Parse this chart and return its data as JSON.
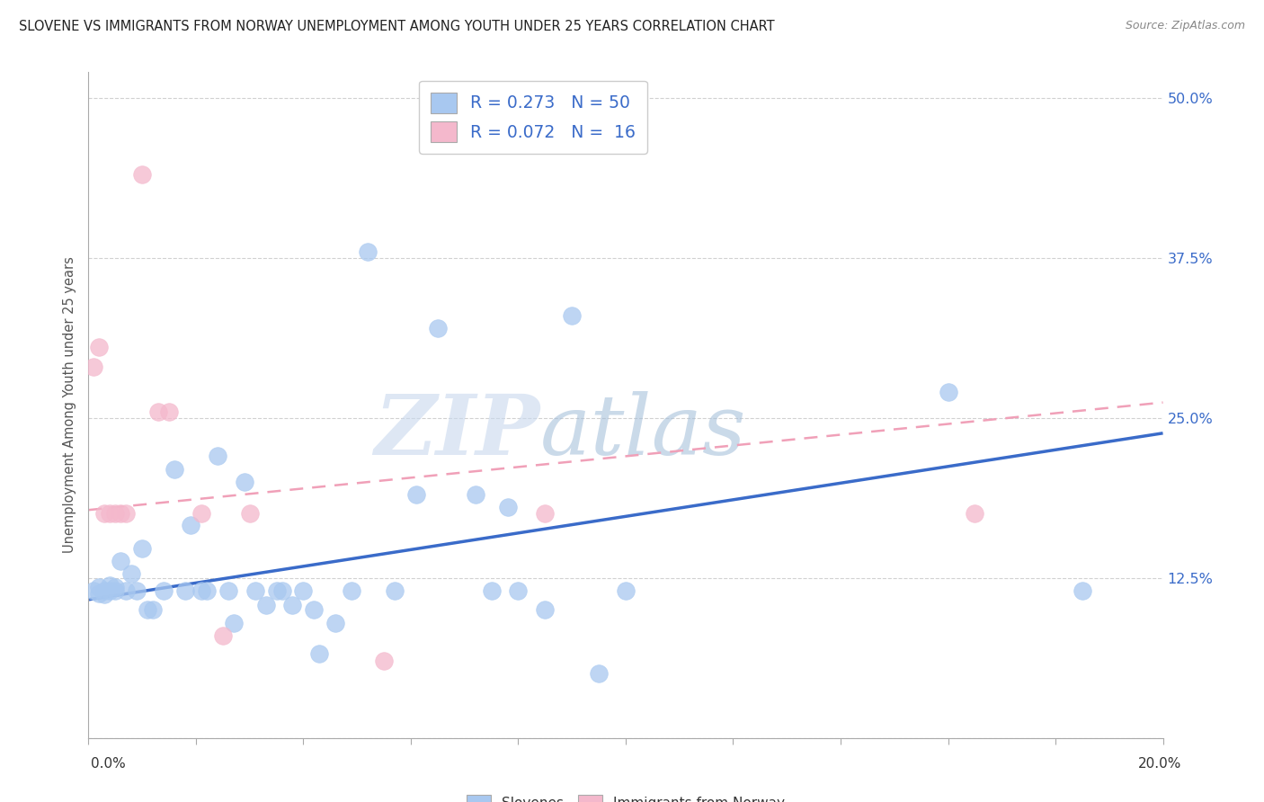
{
  "title": "SLOVENE VS IMMIGRANTS FROM NORWAY UNEMPLOYMENT AMONG YOUTH UNDER 25 YEARS CORRELATION CHART",
  "source": "Source: ZipAtlas.com",
  "ylabel": "Unemployment Among Youth under 25 years",
  "yticks": [
    0.0,
    0.125,
    0.25,
    0.375,
    0.5
  ],
  "ytick_labels": [
    "",
    "12.5%",
    "25.0%",
    "37.5%",
    "50.0%"
  ],
  "xlim": [
    0.0,
    0.2
  ],
  "ylim": [
    0.0,
    0.52
  ],
  "legend_blue_r": "R = 0.273",
  "legend_blue_n": "N = 50",
  "legend_pink_r": "R = 0.072",
  "legend_pink_n": "N =  16",
  "watermark_zip": "ZIP",
  "watermark_atlas": "atlas",
  "blue_scatter": [
    [
      0.001,
      0.115
    ],
    [
      0.002,
      0.113
    ],
    [
      0.002,
      0.118
    ],
    [
      0.003,
      0.115
    ],
    [
      0.003,
      0.112
    ],
    [
      0.004,
      0.115
    ],
    [
      0.004,
      0.119
    ],
    [
      0.005,
      0.115
    ],
    [
      0.005,
      0.118
    ],
    [
      0.006,
      0.138
    ],
    [
      0.007,
      0.115
    ],
    [
      0.008,
      0.128
    ],
    [
      0.009,
      0.115
    ],
    [
      0.01,
      0.148
    ],
    [
      0.011,
      0.1
    ],
    [
      0.012,
      0.1
    ],
    [
      0.014,
      0.115
    ],
    [
      0.016,
      0.21
    ],
    [
      0.018,
      0.115
    ],
    [
      0.019,
      0.166
    ],
    [
      0.021,
      0.115
    ],
    [
      0.022,
      0.115
    ],
    [
      0.024,
      0.22
    ],
    [
      0.026,
      0.115
    ],
    [
      0.027,
      0.09
    ],
    [
      0.029,
      0.2
    ],
    [
      0.031,
      0.115
    ],
    [
      0.033,
      0.104
    ],
    [
      0.035,
      0.115
    ],
    [
      0.036,
      0.115
    ],
    [
      0.038,
      0.104
    ],
    [
      0.04,
      0.115
    ],
    [
      0.042,
      0.1
    ],
    [
      0.043,
      0.066
    ],
    [
      0.046,
      0.09
    ],
    [
      0.049,
      0.115
    ],
    [
      0.052,
      0.38
    ],
    [
      0.057,
      0.115
    ],
    [
      0.061,
      0.19
    ],
    [
      0.065,
      0.32
    ],
    [
      0.072,
      0.19
    ],
    [
      0.075,
      0.115
    ],
    [
      0.078,
      0.18
    ],
    [
      0.08,
      0.115
    ],
    [
      0.085,
      0.1
    ],
    [
      0.09,
      0.33
    ],
    [
      0.095,
      0.05
    ],
    [
      0.1,
      0.115
    ],
    [
      0.16,
      0.27
    ],
    [
      0.185,
      0.115
    ]
  ],
  "pink_scatter": [
    [
      0.001,
      0.29
    ],
    [
      0.002,
      0.305
    ],
    [
      0.003,
      0.175
    ],
    [
      0.004,
      0.175
    ],
    [
      0.005,
      0.175
    ],
    [
      0.006,
      0.175
    ],
    [
      0.007,
      0.175
    ],
    [
      0.01,
      0.44
    ],
    [
      0.013,
      0.255
    ],
    [
      0.015,
      0.255
    ],
    [
      0.021,
      0.175
    ],
    [
      0.025,
      0.08
    ],
    [
      0.03,
      0.175
    ],
    [
      0.055,
      0.06
    ],
    [
      0.085,
      0.175
    ],
    [
      0.165,
      0.175
    ]
  ],
  "blue_scatter_color": "#a8c8f0",
  "pink_scatter_color": "#f4b8cc",
  "blue_line_color": "#3a6bc9",
  "pink_line_color": "#f0a0b8",
  "blue_trend_x": [
    0.0,
    0.2
  ],
  "blue_trend_y": [
    0.108,
    0.238
  ],
  "pink_trend_x": [
    0.0,
    0.2
  ],
  "pink_trend_y": [
    0.178,
    0.262
  ],
  "background_color": "#ffffff",
  "grid_color": "#cccccc",
  "spine_color": "#aaaaaa",
  "title_color": "#222222",
  "source_color": "#888888",
  "axis_label_color": "#555555",
  "tick_label_color": "#3a6bc9"
}
